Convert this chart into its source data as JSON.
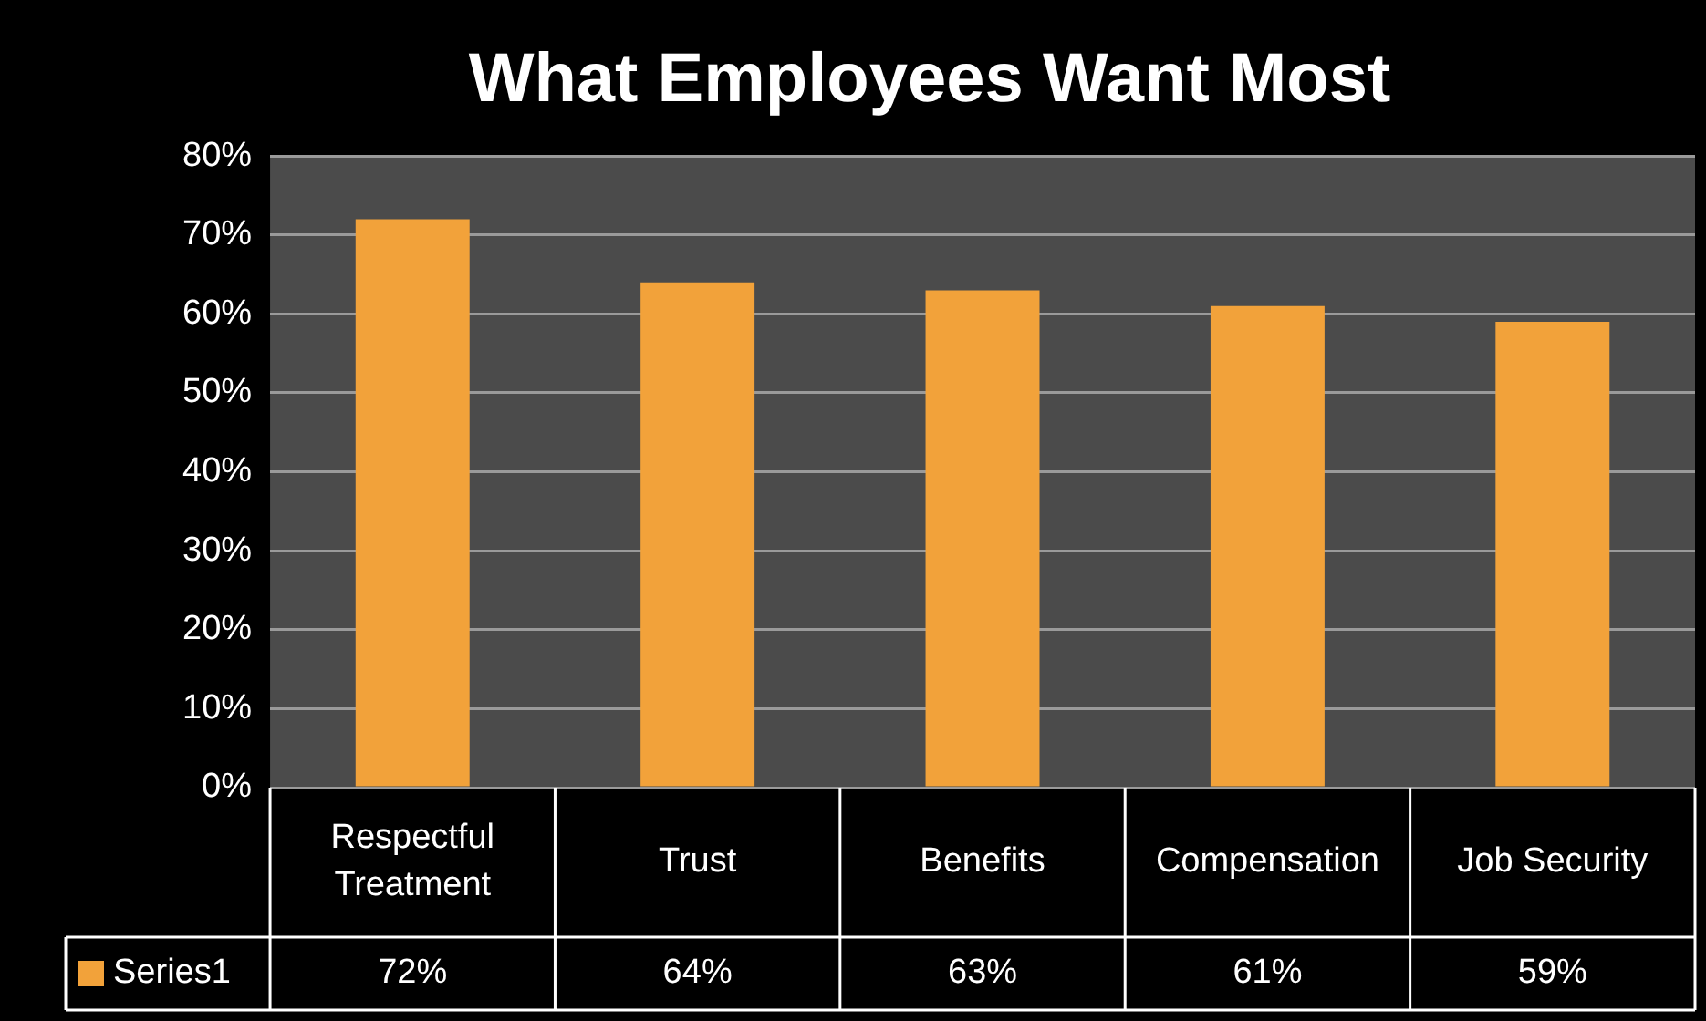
{
  "chart_data": {
    "type": "bar",
    "title": "What Employees Want Most",
    "categories": [
      "Respectful Treatment",
      "Trust",
      "Benefits",
      "Compensation",
      "Job Security"
    ],
    "series": [
      {
        "name": "Series1",
        "color": "#f2a23a",
        "values": [
          72,
          64,
          63,
          61,
          59
        ],
        "value_labels": [
          "72%",
          "64%",
          "63%",
          "61%",
          "59%"
        ]
      }
    ],
    "ylim": [
      0,
      80
    ],
    "yticks": [
      {
        "value": 0,
        "label": "0%"
      },
      {
        "value": 10,
        "label": "10%"
      },
      {
        "value": 20,
        "label": "20%"
      },
      {
        "value": 30,
        "label": "30%"
      },
      {
        "value": 40,
        "label": "40%"
      },
      {
        "value": 50,
        "label": "50%"
      },
      {
        "value": 60,
        "label": "60%"
      },
      {
        "value": 70,
        "label": "70%"
      },
      {
        "value": 80,
        "label": "80%"
      }
    ],
    "grid": "y",
    "legend": "bottom left"
  }
}
